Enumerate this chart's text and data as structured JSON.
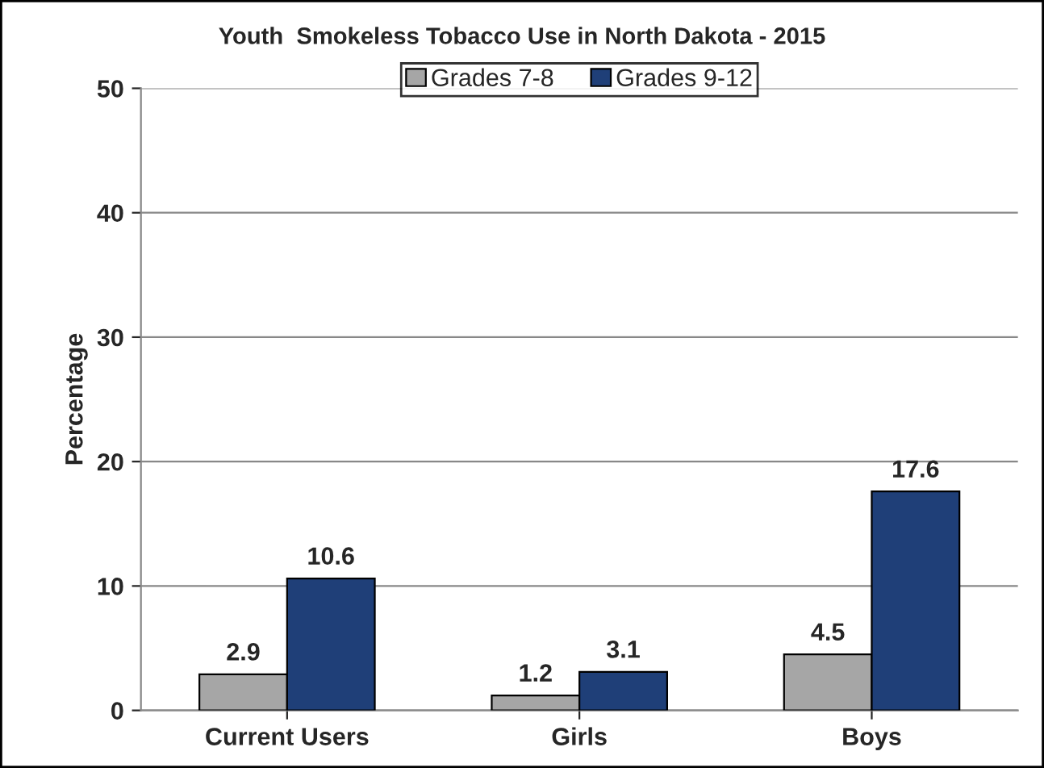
{
  "chart_data": {
    "type": "bar",
    "title": "Youth  Smokeless Tobacco Use in North Dakota - 2015",
    "ylabel": "Percentage",
    "categories": [
      "Current Users",
      "Girls",
      "Boys"
    ],
    "series": [
      {
        "name": "Grades 7-8",
        "color": "#a6a6a6",
        "values": [
          2.9,
          1.2,
          4.5
        ]
      },
      {
        "name": "Grades 9-12",
        "color": "#1f3f78",
        "values": [
          10.6,
          3.1,
          17.6
        ]
      }
    ],
    "ylim": [
      0,
      50
    ],
    "yticks": [
      0,
      10,
      20,
      30,
      40,
      50
    ],
    "grid": "y",
    "legend": "top",
    "data_labels": true
  }
}
